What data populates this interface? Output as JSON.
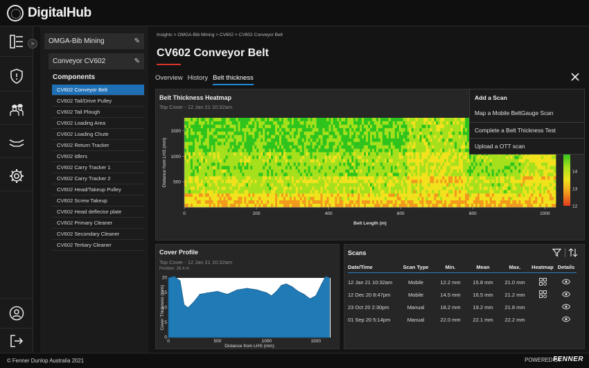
{
  "app": {
    "brand": "DigitalHub"
  },
  "nav": {
    "collapse_glyph": ">"
  },
  "sidebar": {
    "site": "OMGA-Bib Mining",
    "conveyor": "Conveyor CV602",
    "components_title": "Components",
    "components": [
      "CV602 Conveyor Belt",
      "CV602 Tail/Drive Pulley",
      "CV602 Tail Plough",
      "CV602 Loading Area",
      "CV602 Loading Chute",
      "CV602 Return Tracker",
      "CV602 Idlers",
      "CV602 Carry Tracker 1",
      "CV602 Carry Tracker 2",
      "CV602 Head/Takeup Pulley",
      "CV602 Screw Takeup",
      "CV602 Head deflector plate",
      "CV602 Primary Cleaner",
      "CV602 Secondary Cleaner",
      "CV602 Tertiary Cleaner"
    ],
    "active_index": 0
  },
  "breadcrumb": "Insights > OMGA-Bib Mining > CV602 > CV602 Conveyor Belt",
  "page_title": "CV602 Conveyor Belt",
  "tabs": [
    "Overview",
    "History",
    "Belt thickness"
  ],
  "active_tab": 2,
  "heatmap": {
    "title": "Belt Thickness Heatmap",
    "subtitle": "Top Cover - 12 Jan 21 10:32am",
    "xlabel": "Belt Length (m)",
    "ylabel": "Distance from LHS (mm)",
    "xticks": [
      "0",
      "200",
      "400",
      "600",
      "800",
      "1000"
    ],
    "yticks": [
      "1500",
      "1000",
      "500"
    ],
    "colorbar_ticks": [
      "14",
      "13",
      "12"
    ]
  },
  "add_scan_menu": {
    "title": "Add a Scan",
    "items": [
      "Map a Mobile BeltGauge Scan",
      "Complete a Belt Thickness Test",
      "Upload a OTT scan"
    ]
  },
  "cover_profile": {
    "title": "Cover Profile",
    "subtitle": "Top Cover - 12 Jan 21 10:32am",
    "position": "Position: 26.4 m",
    "xlabel": "Distance from LHS (mm)",
    "ylabel": "Cover Thickness (mm)",
    "xticks": [
      "0",
      "500",
      "1000",
      "1500"
    ],
    "yticks": [
      "20",
      "15",
      "10",
      "5",
      "0"
    ]
  },
  "scans": {
    "title": "Scans",
    "columns": [
      "Date/Time",
      "Scan Type",
      "Min.",
      "Mean",
      "Max.",
      "Heatmap",
      "Details"
    ],
    "rows": [
      [
        "12 Jan 21 10:32am",
        "Mobile",
        "12.2 mm",
        "15.8 mm",
        "21.0 mm"
      ],
      [
        "12 Dec 20 8:47pm",
        "Mobile",
        "14.5 mm",
        "16.5 mm",
        "21.2 mm"
      ],
      [
        "23 Oct 20 2:30pm",
        "Manual",
        "18.2 mm",
        "19.2 mm",
        "21.8 mm"
      ],
      [
        "01 Sep 20 5:14pm",
        "Manual",
        "22.0 mm",
        "22.1 mm",
        "22.2 mm"
      ]
    ],
    "heatmap_available": [
      true,
      true,
      false,
      false
    ]
  },
  "footer": {
    "copyright": "© Fenner Dunlop Australia 2021",
    "powered_by": "POWERED BY",
    "brand": "FENNER"
  },
  "chart_data": [
    {
      "type": "heatmap",
      "title": "Belt Thickness Heatmap",
      "xlabel": "Belt Length (m)",
      "ylabel": "Distance from LHS (mm)",
      "xlim": [
        0,
        1030
      ],
      "ylim": [
        0,
        1750
      ],
      "color_scale": [
        "#e23a1d",
        "#f29a1d",
        "#f1e21d",
        "#a6e01d",
        "#2fc41d"
      ],
      "colorbar_range": [
        12,
        15
      ]
    },
    {
      "type": "area",
      "title": "Cover Profile",
      "xlabel": "Distance from LHS (mm)",
      "ylabel": "Cover Thickness (mm)",
      "xlim": [
        0,
        1650
      ],
      "ylim": [
        0,
        20
      ],
      "x": [
        0,
        60,
        120,
        160,
        200,
        260,
        320,
        400,
        500,
        600,
        700,
        800,
        900,
        1000,
        1050,
        1100,
        1150,
        1200,
        1260,
        1320,
        1380,
        1440,
        1500,
        1560,
        1600,
        1640
      ],
      "values": [
        20,
        20.5,
        19,
        11,
        10,
        12,
        14.5,
        15,
        15.5,
        14.5,
        16,
        16.5,
        16,
        15,
        14,
        15.5,
        17.5,
        18,
        17,
        15.5,
        14.5,
        13,
        14,
        18,
        20.5,
        20
      ]
    }
  ]
}
